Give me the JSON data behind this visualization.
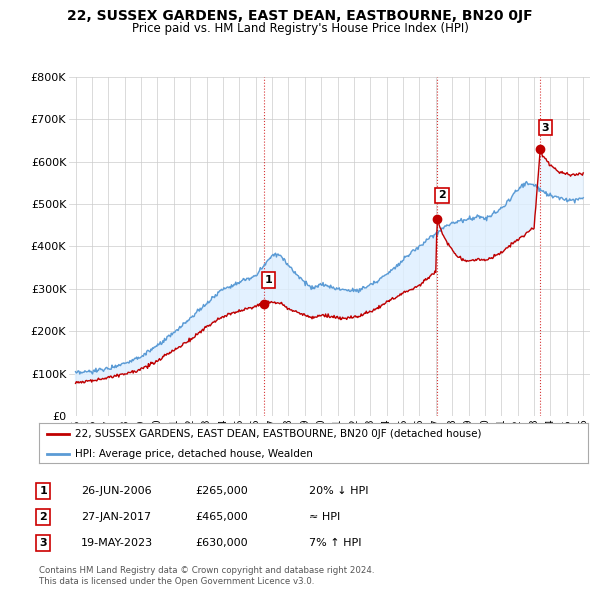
{
  "title": "22, SUSSEX GARDENS, EAST DEAN, EASTBOURNE, BN20 0JF",
  "subtitle": "Price paid vs. HM Land Registry's House Price Index (HPI)",
  "ylim": [
    0,
    800000
  ],
  "yticks": [
    0,
    100000,
    200000,
    300000,
    400000,
    500000,
    600000,
    700000,
    800000
  ],
  "ytick_labels": [
    "£0",
    "£100K",
    "£200K",
    "£300K",
    "£400K",
    "£500K",
    "£600K",
    "£700K",
    "£800K"
  ],
  "hpi_color": "#5b9bd5",
  "hpi_fill_color": "#ddeeff",
  "price_color": "#c00000",
  "marker_color": "#c00000",
  "vline_color": "#cc0000",
  "sale_year_floats": [
    2006.49,
    2017.07,
    2023.38
  ],
  "sale_prices": [
    265000,
    465000,
    630000
  ],
  "sale_labels": [
    "1",
    "2",
    "3"
  ],
  "hpi_knots_x": [
    1995,
    1996,
    1997,
    1998,
    1999,
    2000,
    2001,
    2002,
    2003,
    2004,
    2005,
    2006,
    2007,
    2007.5,
    2008,
    2008.5,
    2009,
    2009.5,
    2010,
    2010.5,
    2011,
    2011.5,
    2012,
    2012.5,
    2013,
    2013.5,
    2014,
    2014.5,
    2015,
    2015.5,
    2016,
    2016.5,
    2017,
    2017.5,
    2018,
    2018.5,
    2019,
    2019.5,
    2020,
    2020.5,
    2021,
    2021.5,
    2022,
    2022.5,
    2023,
    2023.5,
    2024,
    2024.5,
    2025,
    2025.5,
    2026
  ],
  "hpi_knots_y": [
    100000,
    105000,
    112000,
    125000,
    140000,
    165000,
    195000,
    230000,
    265000,
    300000,
    315000,
    330000,
    380000,
    380000,
    355000,
    335000,
    315000,
    300000,
    310000,
    305000,
    300000,
    298000,
    295000,
    300000,
    310000,
    320000,
    335000,
    350000,
    370000,
    385000,
    400000,
    415000,
    430000,
    445000,
    455000,
    460000,
    465000,
    470000,
    465000,
    475000,
    490000,
    510000,
    535000,
    550000,
    545000,
    530000,
    520000,
    515000,
    510000,
    510000,
    515000
  ],
  "prop_knots_x": [
    1995,
    1996,
    1997,
    1998,
    1999,
    2000,
    2001,
    2002,
    2003,
    2004,
    2005,
    2006,
    2006.49,
    2007,
    2007.5,
    2008,
    2008.5,
    2009,
    2009.5,
    2010,
    2010.5,
    2011,
    2011.5,
    2012,
    2012.5,
    2013,
    2013.5,
    2014,
    2014.5,
    2015,
    2015.5,
    2016,
    2016.5,
    2017,
    2017.07,
    2017.5,
    2018,
    2018.5,
    2019,
    2019.5,
    2020,
    2020.5,
    2021,
    2021.5,
    2022,
    2022.5,
    2023,
    2023.38,
    2023.5,
    2024,
    2024.5,
    2025,
    2025.5,
    2026
  ],
  "prop_knots_y": [
    80000,
    83000,
    90000,
    100000,
    110000,
    130000,
    155000,
    180000,
    210000,
    235000,
    248000,
    258000,
    265000,
    268000,
    265000,
    255000,
    245000,
    238000,
    232000,
    238000,
    235000,
    232000,
    230000,
    232000,
    238000,
    245000,
    255000,
    268000,
    278000,
    290000,
    298000,
    308000,
    325000,
    340000,
    465000,
    420000,
    390000,
    370000,
    365000,
    370000,
    368000,
    375000,
    385000,
    400000,
    415000,
    430000,
    445000,
    630000,
    615000,
    590000,
    575000,
    570000,
    568000,
    572000
  ],
  "legend_property": "22, SUSSEX GARDENS, EAST DEAN, EASTBOURNE, BN20 0JF (detached house)",
  "legend_hpi": "HPI: Average price, detached house, Wealden",
  "table_rows": [
    {
      "num": "1",
      "date": "26-JUN-2006",
      "price": "£265,000",
      "hpi": "20% ↓ HPI"
    },
    {
      "num": "2",
      "date": "27-JAN-2017",
      "price": "£465,000",
      "hpi": "≈ HPI"
    },
    {
      "num": "3",
      "date": "19-MAY-2023",
      "price": "£630,000",
      "hpi": "7% ↑ HPI"
    }
  ],
  "footnote1": "Contains HM Land Registry data © Crown copyright and database right 2024.",
  "footnote2": "This data is licensed under the Open Government Licence v3.0.",
  "bg_color": "#ffffff",
  "grid_color": "#cccccc"
}
